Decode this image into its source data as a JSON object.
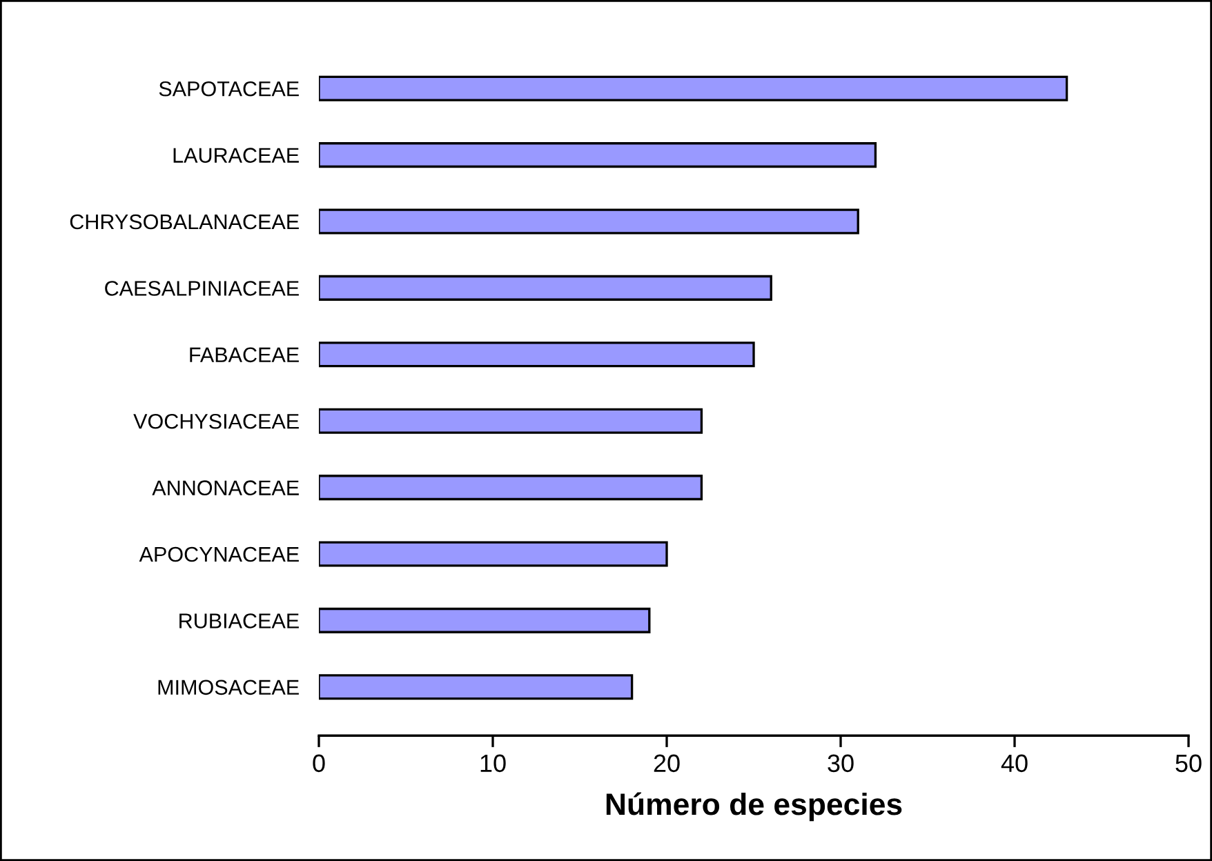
{
  "chart_data": {
    "type": "bar",
    "orientation": "horizontal",
    "xlabel": "Número de especies",
    "categories": [
      "SAPOTACEAE",
      "LAURACEAE",
      "CHRYSOBALANACEAE",
      "CAESALPINIACEAE",
      "FABACEAE",
      "VOCHYSIACEAE",
      "ANNONACEAE",
      "APOCYNACEAE",
      "RUBIACEAE",
      "MIMOSACEAE"
    ],
    "values": [
      43,
      32,
      31,
      26,
      25,
      22,
      22,
      20,
      19,
      18
    ],
    "color": "#9999ff",
    "xlim": [
      0,
      50
    ],
    "xticks": [
      0,
      10,
      20,
      30,
      40,
      50
    ],
    "grid": false,
    "legend": false
  }
}
